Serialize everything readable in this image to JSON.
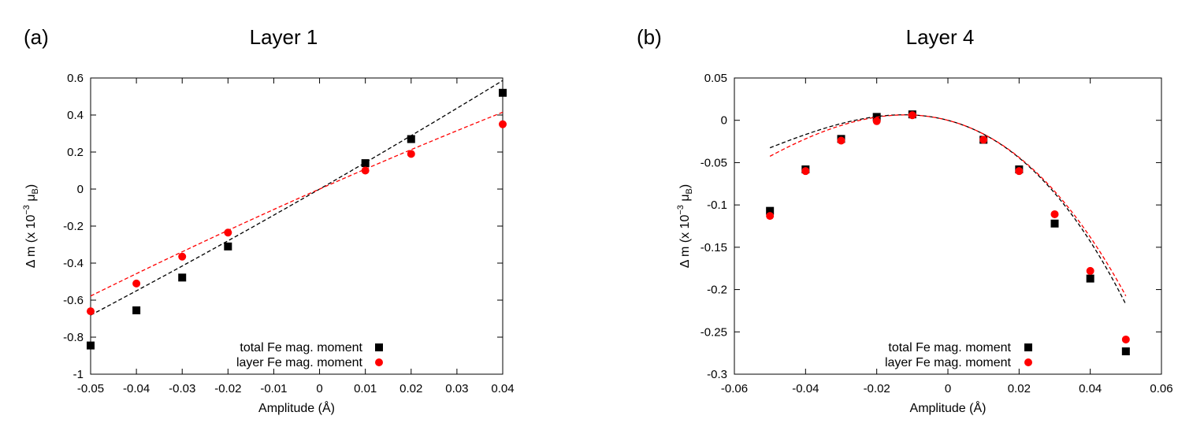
{
  "chart_data": [
    {
      "type": "scatter",
      "panel_label": "(a)",
      "title": "Layer 1",
      "xlabel": "Amplitude (Å)",
      "ylabel": "Δ m (x 10⁻³ μB)",
      "ylabel_parts": {
        "main": "Δ m (x 10",
        "exp": "−3",
        "mu": " μ",
        "sub": "B",
        "close": ")"
      },
      "xlim": [
        -0.05,
        0.04
      ],
      "ylim": [
        -1,
        0.6
      ],
      "xticks": [
        -0.05,
        -0.04,
        -0.03,
        -0.02,
        -0.01,
        0,
        0.01,
        0.02,
        0.03,
        0.04
      ],
      "xtick_labels": [
        "-0.05",
        "-0.04",
        "-0.03",
        "-0.02",
        "-0.01",
        "0",
        "0.01",
        "0.02",
        "0.03",
        "0.04"
      ],
      "yticks": [
        -1,
        -0.8,
        -0.6,
        -0.4,
        -0.2,
        0,
        0.2,
        0.4,
        0.6
      ],
      "ytick_labels": [
        "-1",
        "-0.8",
        "-0.6",
        "-0.4",
        "-0.2",
        "0",
        "0.2",
        "0.4",
        "0.6"
      ],
      "legend_position": "bottom-right",
      "series": [
        {
          "name": "total Fe mag. moment",
          "marker": "square",
          "color": "#000000",
          "x": [
            -0.05,
            -0.04,
            -0.03,
            -0.02,
            0.01,
            0.02,
            0.04
          ],
          "y": [
            -0.845,
            -0.655,
            -0.478,
            -0.31,
            0.14,
            0.27,
            0.52
          ],
          "fit": {
            "kind": "polynomial",
            "coefficients": [
              0,
              14.2,
              11.5
            ],
            "dashed": true
          }
        },
        {
          "name": "layer Fe mag. moment",
          "marker": "circle",
          "color": "#ff0000",
          "x": [
            -0.05,
            -0.04,
            -0.03,
            -0.02,
            0.01,
            0.02,
            0.04
          ],
          "y": [
            -0.66,
            -0.51,
            -0.365,
            -0.235,
            0.1,
            0.19,
            0.35
          ],
          "fit": {
            "kind": "polynomial",
            "coefficients": [
              0,
              10.9,
              -13.1
            ],
            "dashed": true
          }
        }
      ]
    },
    {
      "type": "scatter",
      "panel_label": "(b)",
      "title": "Layer 4",
      "xlabel": "Amplitude (Å)",
      "ylabel": "Δ m (x 10⁻³ μB)",
      "ylabel_parts": {
        "main": "Δ m (x 10",
        "exp": "−3",
        "mu": " μ",
        "sub": "B",
        "close": ")"
      },
      "xlim": [
        -0.06,
        0.06
      ],
      "ylim": [
        -0.3,
        0.05
      ],
      "xticks": [
        -0.06,
        -0.04,
        -0.02,
        0,
        0.02,
        0.04,
        0.06
      ],
      "xtick_labels": [
        "-0.06",
        "-0.04",
        "-0.02",
        "0",
        "0.02",
        "0.04",
        "0.06"
      ],
      "yticks": [
        -0.3,
        -0.25,
        -0.2,
        -0.15,
        -0.1,
        -0.05,
        0,
        0.05
      ],
      "ytick_labels": [
        "-0.3",
        "-0.25",
        "-0.2",
        "-0.15",
        "-0.1",
        "-0.05",
        "0",
        "0.05"
      ],
      "legend_position": "bottom-right",
      "series": [
        {
          "name": "total Fe mag. moment",
          "marker": "square",
          "color": "#000000",
          "x": [
            -0.05,
            -0.04,
            -0.03,
            -0.02,
            -0.01,
            0.01,
            0.02,
            0.03,
            0.04,
            0.05
          ],
          "y": [
            -0.107,
            -0.058,
            -0.022,
            0.004,
            0.007,
            -0.023,
            -0.058,
            -0.122,
            -0.187,
            -0.273
          ],
          "fit": {
            "kind": "polynomial",
            "coefficients": [
              0,
              -1.1,
              -50,
              -300
            ],
            "dashed": true
          }
        },
        {
          "name": "layer Fe mag. moment",
          "marker": "circle",
          "color": "#ff0000",
          "x": [
            -0.05,
            -0.04,
            -0.03,
            -0.02,
            -0.01,
            0.01,
            0.02,
            0.03,
            0.04,
            0.05
          ],
          "y": [
            -0.113,
            -0.06,
            -0.024,
            -0.001,
            0.006,
            -0.023,
            -0.06,
            -0.111,
            -0.178,
            -0.259
          ],
          "fit": {
            "kind": "polynomial",
            "coefficients": [
              0,
              -1.1,
              -50,
              -220
            ],
            "dashed": true
          }
        }
      ]
    }
  ]
}
